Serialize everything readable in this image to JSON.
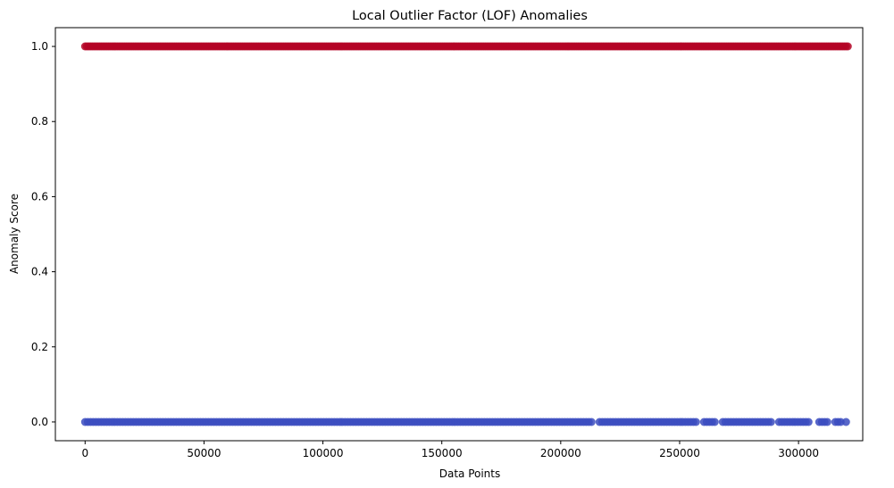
{
  "chart_data": {
    "type": "scatter",
    "title": "Local Outlier Factor (LOF) Anomalies",
    "xlabel": "Data Points",
    "ylabel": "Anomaly Score",
    "xlim": [
      -12500,
      327000
    ],
    "ylim": [
      -0.05,
      1.05
    ],
    "xticks": [
      0,
      50000,
      100000,
      150000,
      200000,
      250000,
      300000
    ],
    "xtick_labels": [
      "0",
      "50000",
      "100000",
      "150000",
      "200000",
      "250000",
      "300000"
    ],
    "yticks": [
      0.0,
      0.2,
      0.4,
      0.6,
      0.8,
      1.0
    ],
    "ytick_labels": [
      "0.0",
      "0.2",
      "0.4",
      "0.6",
      "0.8",
      "1.0"
    ],
    "grid": false,
    "legend": "none",
    "colors": {
      "score_1": "#b40426",
      "score_0": "#3b4cc0"
    },
    "series": [
      {
        "y": 1.0,
        "x_start": 0,
        "x_end": 321000,
        "color": "#b40426",
        "density": "continuous"
      },
      {
        "y": 0.0,
        "x_start": 0,
        "x_end": 321000,
        "color": "#3b4cc0",
        "density": "sparse",
        "gaps": [
          [
            214000,
            216000
          ],
          [
            258000,
            260000
          ],
          [
            265000,
            268000
          ],
          [
            289000,
            291000
          ],
          [
            305000,
            308000
          ],
          [
            313000,
            314500
          ],
          [
            318000,
            319000
          ]
        ]
      }
    ]
  }
}
